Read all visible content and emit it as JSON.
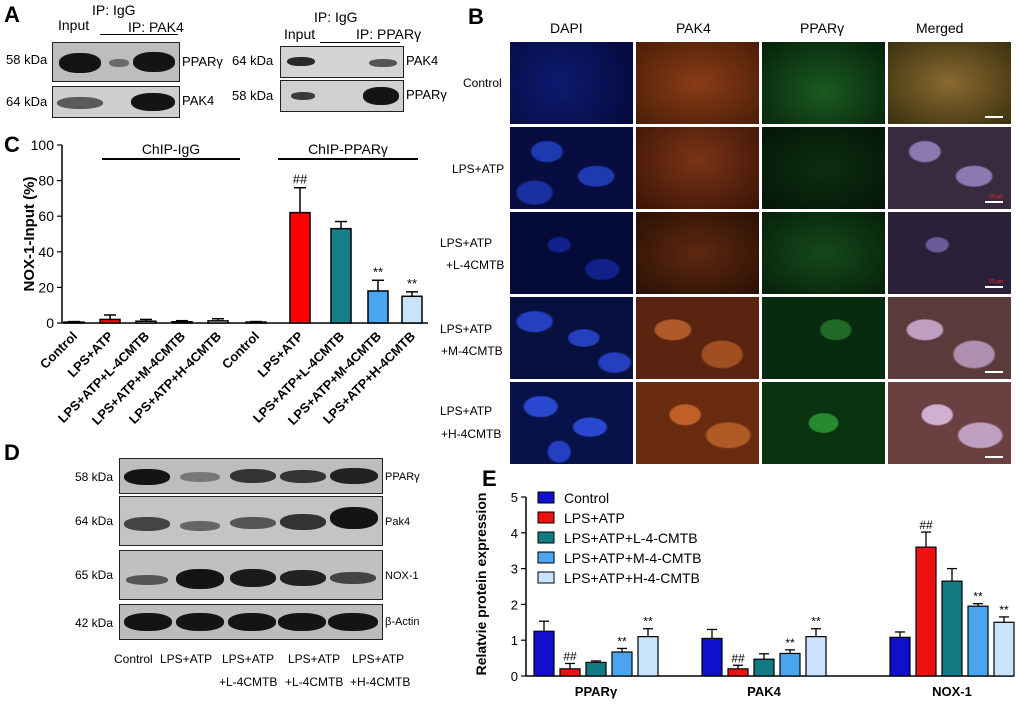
{
  "panelA": {
    "label": "A",
    "left": {
      "ip_igg": "IP: IgG",
      "input": "Input",
      "ip_pak4": "IP: PAK4",
      "rows": [
        {
          "mw": "58 kDa",
          "protein": "PPARγ"
        },
        {
          "mw": "64 kDa",
          "protein": "PAK4"
        }
      ]
    },
    "right": {
      "ip_igg": "IP: IgG",
      "input": "Input",
      "ip_ppar": "IP: PPARγ",
      "rows": [
        {
          "mw": "64 kDa",
          "protein": "PAK4"
        },
        {
          "mw": "58 kDa",
          "protein": "PPARγ"
        }
      ]
    }
  },
  "panelB": {
    "label": "B",
    "columns": [
      "DAPI",
      "PAK4",
      "PPARγ",
      "Merged"
    ],
    "rows": [
      {
        "line1": "Control",
        "line2": ""
      },
      {
        "line1": "LPS+ATP",
        "line2": ""
      },
      {
        "line1": "LPS+ATP",
        "line2": "+L-4CMTB"
      },
      {
        "line1": "LPS+ATP",
        "line2": "+M-4CMTB"
      },
      {
        "line1": "LPS+ATP",
        "line2": "+H-4CMTB"
      }
    ],
    "scale_text": "20 μm",
    "colors": {
      "dapi": "#0a1560",
      "pak4": "#6b2e10",
      "ppar": "#0c3514",
      "merged": "#4a3038"
    }
  },
  "panelC": {
    "label": "C",
    "chart_data": {
      "type": "bar",
      "ylabel": "NOX-1-Input (%)",
      "ylim": [
        0,
        100
      ],
      "yticks": [
        0,
        20,
        40,
        60,
        80,
        100
      ],
      "group_labels": [
        "ChIP-IgG",
        "ChIP-PPARγ"
      ],
      "categories": [
        "Control",
        "LPS+ATP",
        "LPS+ATP+L-4CMTB",
        "LPS+ATP+M-4CMTB",
        "LPS+ATP+H-4CMTB",
        "Control",
        "LPS+ATP",
        "LPS+ATP+L-4CMTB",
        "LPS+ATP+M-4CMTB",
        "LPS+ATP+H-4CMTB"
      ],
      "values": [
        0.5,
        2,
        1,
        0.7,
        1.2,
        0.5,
        62,
        53,
        18,
        15
      ],
      "errors": [
        0.3,
        2.5,
        1,
        0.6,
        1.2,
        0.3,
        14,
        4,
        6,
        2.5
      ],
      "colors": [
        "#ffffff",
        "#ff0000",
        "#ffffff",
        "#ffffff",
        "#ffffff",
        "#ffffff",
        "#ff0000",
        "#15808a",
        "#4aa4ee",
        "#c9e3fb"
      ],
      "annotations": [
        "",
        "",
        "",
        "",
        "",
        "",
        "##",
        "",
        "**",
        "**"
      ]
    }
  },
  "panelD": {
    "label": "D",
    "rows": [
      {
        "mw": "58 kDa",
        "protein": "PPARγ"
      },
      {
        "mw": "64 kDa",
        "protein": "Pak4"
      },
      {
        "mw": "65 kDa",
        "protein": "NOX-1"
      },
      {
        "mw": "42 kDa",
        "protein": "β-Actin"
      }
    ],
    "lanes": [
      {
        "line1": "Control",
        "line2": ""
      },
      {
        "line1": "LPS+ATP",
        "line2": ""
      },
      {
        "line1": "LPS+ATP",
        "line2": "+L-4CMTB"
      },
      {
        "line1": "LPS+ATP",
        "line2": "+L-4CMTB"
      },
      {
        "line1": "LPS+ATP",
        "line2": "+H-4CMTB"
      }
    ]
  },
  "panelE": {
    "label": "E",
    "chart_data": {
      "type": "bar",
      "ylabel": "Relatvie protein expression",
      "ylim": [
        0,
        5
      ],
      "yticks": [
        0,
        1,
        2,
        3,
        4,
        5
      ],
      "categories": [
        "PPARγ",
        "PAK4",
        "NOX-1"
      ],
      "series": [
        {
          "name": "Control",
          "color": "#1010cc",
          "values": [
            1.25,
            1.05,
            1.08
          ],
          "errors": [
            0.28,
            0.25,
            0.15
          ],
          "annotations": [
            "",
            "",
            ""
          ]
        },
        {
          "name": "LPS+ATP",
          "color": "#ee1111",
          "values": [
            0.2,
            0.2,
            3.6
          ],
          "errors": [
            0.15,
            0.1,
            0.42
          ],
          "annotations": [
            "##",
            "##",
            "##"
          ]
        },
        {
          "name": "LPS+ATP+L-4-CMTB",
          "color": "#117a82",
          "values": [
            0.38,
            0.47,
            2.65
          ],
          "errors": [
            0.04,
            0.15,
            0.35
          ],
          "annotations": [
            "",
            "",
            ""
          ]
        },
        {
          "name": "LPS+ATP+M-4-CMTB",
          "color": "#4aa4ee",
          "values": [
            0.67,
            0.63,
            1.95
          ],
          "errors": [
            0.1,
            0.1,
            0.07
          ],
          "annotations": [
            "**",
            "**",
            "**"
          ]
        },
        {
          "name": "LPS+ATP+H-4-CMTB",
          "color": "#c9e3fb",
          "values": [
            1.1,
            1.1,
            1.5
          ],
          "errors": [
            0.22,
            0.22,
            0.15
          ],
          "annotations": [
            "**",
            "**",
            "**"
          ]
        }
      ]
    }
  }
}
